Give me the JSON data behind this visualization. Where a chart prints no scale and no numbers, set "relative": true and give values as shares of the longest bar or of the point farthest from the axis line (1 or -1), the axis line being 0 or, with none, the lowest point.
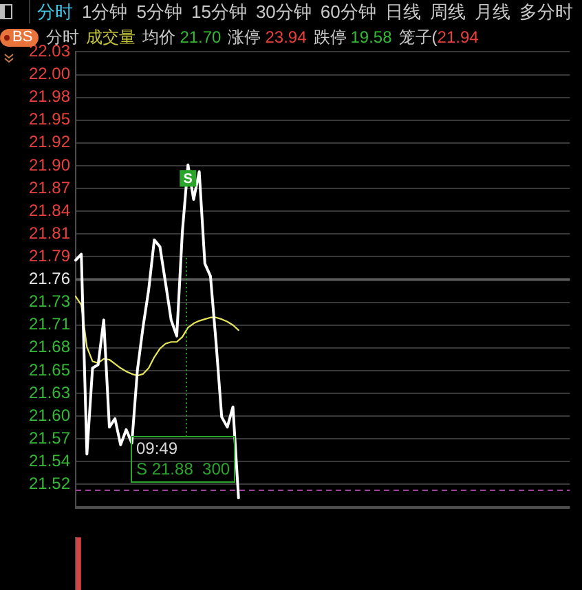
{
  "chart_data": [
    {
      "type": "other",
      "annotations": [
        "分时",
        "1分钟",
        "5分钟",
        "15分钟",
        "30分钟",
        "60分钟",
        "日线",
        "周线",
        "月线",
        "多分时"
      ]
    },
    {
      "type": "line",
      "annotations": [
        "BS",
        "分时",
        "成交量",
        "均价",
        "21.70",
        "涨停",
        "23.94",
        "跌停",
        "19.58",
        "笼子(",
        "21.94",
        "09:49",
        "S 21.88  300"
      ],
      "categories": [
        null,
        null,
        null,
        null,
        null,
        null,
        null,
        null,
        null,
        null,
        null,
        null,
        null,
        null,
        null,
        null,
        null,
        null,
        null,
        null,
        null,
        null,
        null,
        null,
        null,
        null,
        null,
        null,
        null,
        null,
        null,
        null,
        null,
        null,
        null,
        null,
        null,
        null,
        null,
        null,
        null,
        null,
        null,
        null,
        null,
        null,
        null,
        null,
        null,
        null,
        null,
        null,
        null,
        null,
        null,
        null,
        null,
        null,
        null,
        null,
        null,
        null,
        null,
        null,
        null,
        null,
        null,
        null,
        null,
        null,
        null,
        null,
        null,
        null,
        null,
        null,
        null,
        null,
        null,
        null,
        null,
        null,
        null,
        null,
        null,
        null,
        null,
        null,
        null
      ],
      "series": [
        {
          "color": "#ffffff",
          "values": [
            21.783,
            21.79,
            21.553,
            21.655,
            21.659,
            21.712,
            21.585,
            21.595,
            21.564,
            21.582,
            21.566,
            21.653,
            21.704,
            21.748,
            21.807,
            21.799,
            21.756,
            21.712,
            21.693,
            21.817,
            21.896,
            21.855,
            21.888,
            21.779,
            21.764,
            21.685,
            21.597,
            21.585,
            21.609,
            21.501,
            null,
            null,
            null,
            null,
            null,
            null,
            null,
            null,
            null,
            null,
            null,
            null,
            null,
            null,
            null,
            null,
            null,
            null,
            null,
            null,
            null,
            null,
            null,
            null,
            null,
            null,
            null,
            null,
            null,
            null,
            null,
            null,
            null,
            null,
            null,
            null,
            null,
            null,
            null,
            null,
            null,
            null,
            null,
            null,
            null,
            null,
            null,
            null,
            null,
            null,
            null,
            null,
            null,
            null,
            null,
            null,
            null,
            null,
            null
          ]
        },
        {
          "color": "#e6e65a",
          "values": [
            21.74,
            21.73,
            21.68,
            21.663,
            21.661,
            21.666,
            21.665,
            21.66,
            21.655,
            21.651,
            21.648,
            21.646,
            21.648,
            21.655,
            21.668,
            21.678,
            21.684,
            21.686,
            21.686,
            21.692,
            21.703,
            21.708,
            21.711,
            21.713,
            21.715,
            21.715,
            21.713,
            21.71,
            21.706,
            21.7,
            null,
            null,
            null,
            null,
            null,
            null,
            null,
            null,
            null,
            null,
            null,
            null,
            null,
            null,
            null,
            null,
            null,
            null,
            null,
            null,
            null,
            null,
            null,
            null,
            null,
            null,
            null,
            null,
            null,
            null,
            null,
            null,
            null,
            null,
            null,
            null,
            null,
            null,
            null,
            null,
            null,
            null,
            null,
            null,
            null,
            null,
            null,
            null,
            null,
            null,
            null,
            null,
            null,
            null,
            null,
            null,
            null,
            null,
            null
          ]
        },
        {
          "type": "scatter",
          "name": "S",
          "color": "#2ca52c",
          "marker": "square",
          "values": [
            null,
            null,
            null,
            null,
            null,
            null,
            null,
            null,
            null,
            null,
            null,
            null,
            null,
            null,
            null,
            null,
            null,
            null,
            null,
            null,
            21.88,
            null,
            null,
            null,
            null,
            null,
            null,
            null,
            null,
            null,
            null,
            null,
            null,
            null,
            null,
            null,
            null,
            null,
            null,
            null,
            null,
            null,
            null,
            null,
            null,
            null,
            null,
            null,
            null,
            null,
            null,
            null,
            null,
            null,
            null,
            null,
            null,
            null,
            null,
            null,
            null,
            null,
            null,
            null,
            null,
            null,
            null,
            null,
            null,
            null,
            null,
            null,
            null,
            null,
            null,
            null,
            null,
            null,
            null,
            null,
            null,
            null,
            null,
            null,
            null,
            null,
            null,
            null,
            null
          ]
        }
      ],
      "ylim": [
        21.49,
        22.03
      ],
      "yticks": [
        {
          "value": 21.49,
          "label": null
        },
        {
          "value": 21.517,
          "label": "21.52"
        },
        {
          "value": 21.544,
          "label": "21.54"
        },
        {
          "value": 21.571,
          "label": "21.57"
        },
        {
          "value": 21.598,
          "label": "21.60"
        },
        {
          "value": 21.625,
          "label": "21.63"
        },
        {
          "value": 21.652,
          "label": "21.65"
        },
        {
          "value": 21.679,
          "label": "21.68"
        },
        {
          "value": 21.706,
          "label": "21.71"
        },
        {
          "value": 21.733,
          "label": "21.73"
        },
        21.76,
        {
          "value": 21.787,
          "label": "21.79"
        },
        {
          "value": 21.814,
          "label": "21.81"
        },
        {
          "value": 21.841,
          "label": "21.84"
        },
        {
          "value": 21.868,
          "label": "21.87"
        },
        {
          "value": 21.895,
          "label": "21.90"
        },
        {
          "value": 21.922,
          "label": "21.92"
        },
        {
          "value": 21.949,
          "label": "21.95"
        },
        {
          "value": 21.976,
          "label": "21.98"
        },
        {
          "value": 22.003,
          "label": "22.00"
        },
        22.03
      ],
      "grid": "y",
      "tick_labels": "y",
      "ref_lines": [
        {
          "axis": "y",
          "value": 21.76,
          "color": "#5c5c5c"
        },
        {
          "axis": "y",
          "value": 21.51,
          "color": "#a23ca2",
          "line_style": "dashed"
        }
      ]
    },
    {
      "type": "bar",
      "relative": true,
      "tick_labels": false,
      "color": "#d24646",
      "categories": [
        null,
        null,
        null,
        null,
        null,
        null,
        null,
        null,
        null,
        null,
        null,
        null,
        null,
        null,
        null,
        null,
        null,
        null,
        null,
        null,
        null,
        null,
        null,
        null,
        null,
        null,
        null,
        null,
        null,
        null,
        null,
        null,
        null,
        null,
        null,
        null,
        null,
        null,
        null,
        null,
        null,
        null,
        null,
        null,
        null,
        null,
        null,
        null,
        null,
        null,
        null,
        null,
        null,
        null,
        null,
        null,
        null,
        null,
        null,
        null,
        null,
        null,
        null,
        null,
        null,
        null,
        null,
        null,
        null,
        null,
        null,
        null,
        null,
        null,
        null,
        null,
        null,
        null,
        null,
        null,
        null,
        null,
        null,
        null,
        null,
        null,
        null,
        null,
        null
      ],
      "values": [
        1,
        null,
        null,
        null,
        null,
        null,
        null,
        null,
        null,
        null,
        null,
        null,
        null,
        null,
        null,
        null,
        null,
        null,
        null,
        null,
        null,
        null,
        null,
        null,
        null,
        null,
        null,
        null,
        null,
        null,
        null,
        null,
        null,
        null,
        null,
        null,
        null,
        null,
        null,
        null,
        null,
        null,
        null,
        null,
        null,
        null,
        null,
        null,
        null,
        null,
        null,
        null,
        null,
        null,
        null,
        null,
        null,
        null,
        null,
        null,
        null,
        null,
        null,
        null,
        null,
        null,
        null,
        null,
        null,
        null,
        null,
        null,
        null,
        null,
        null,
        null,
        null,
        null,
        null,
        null,
        null,
        null,
        null,
        null,
        null,
        null,
        null,
        null,
        null
      ]
    }
  ]
}
